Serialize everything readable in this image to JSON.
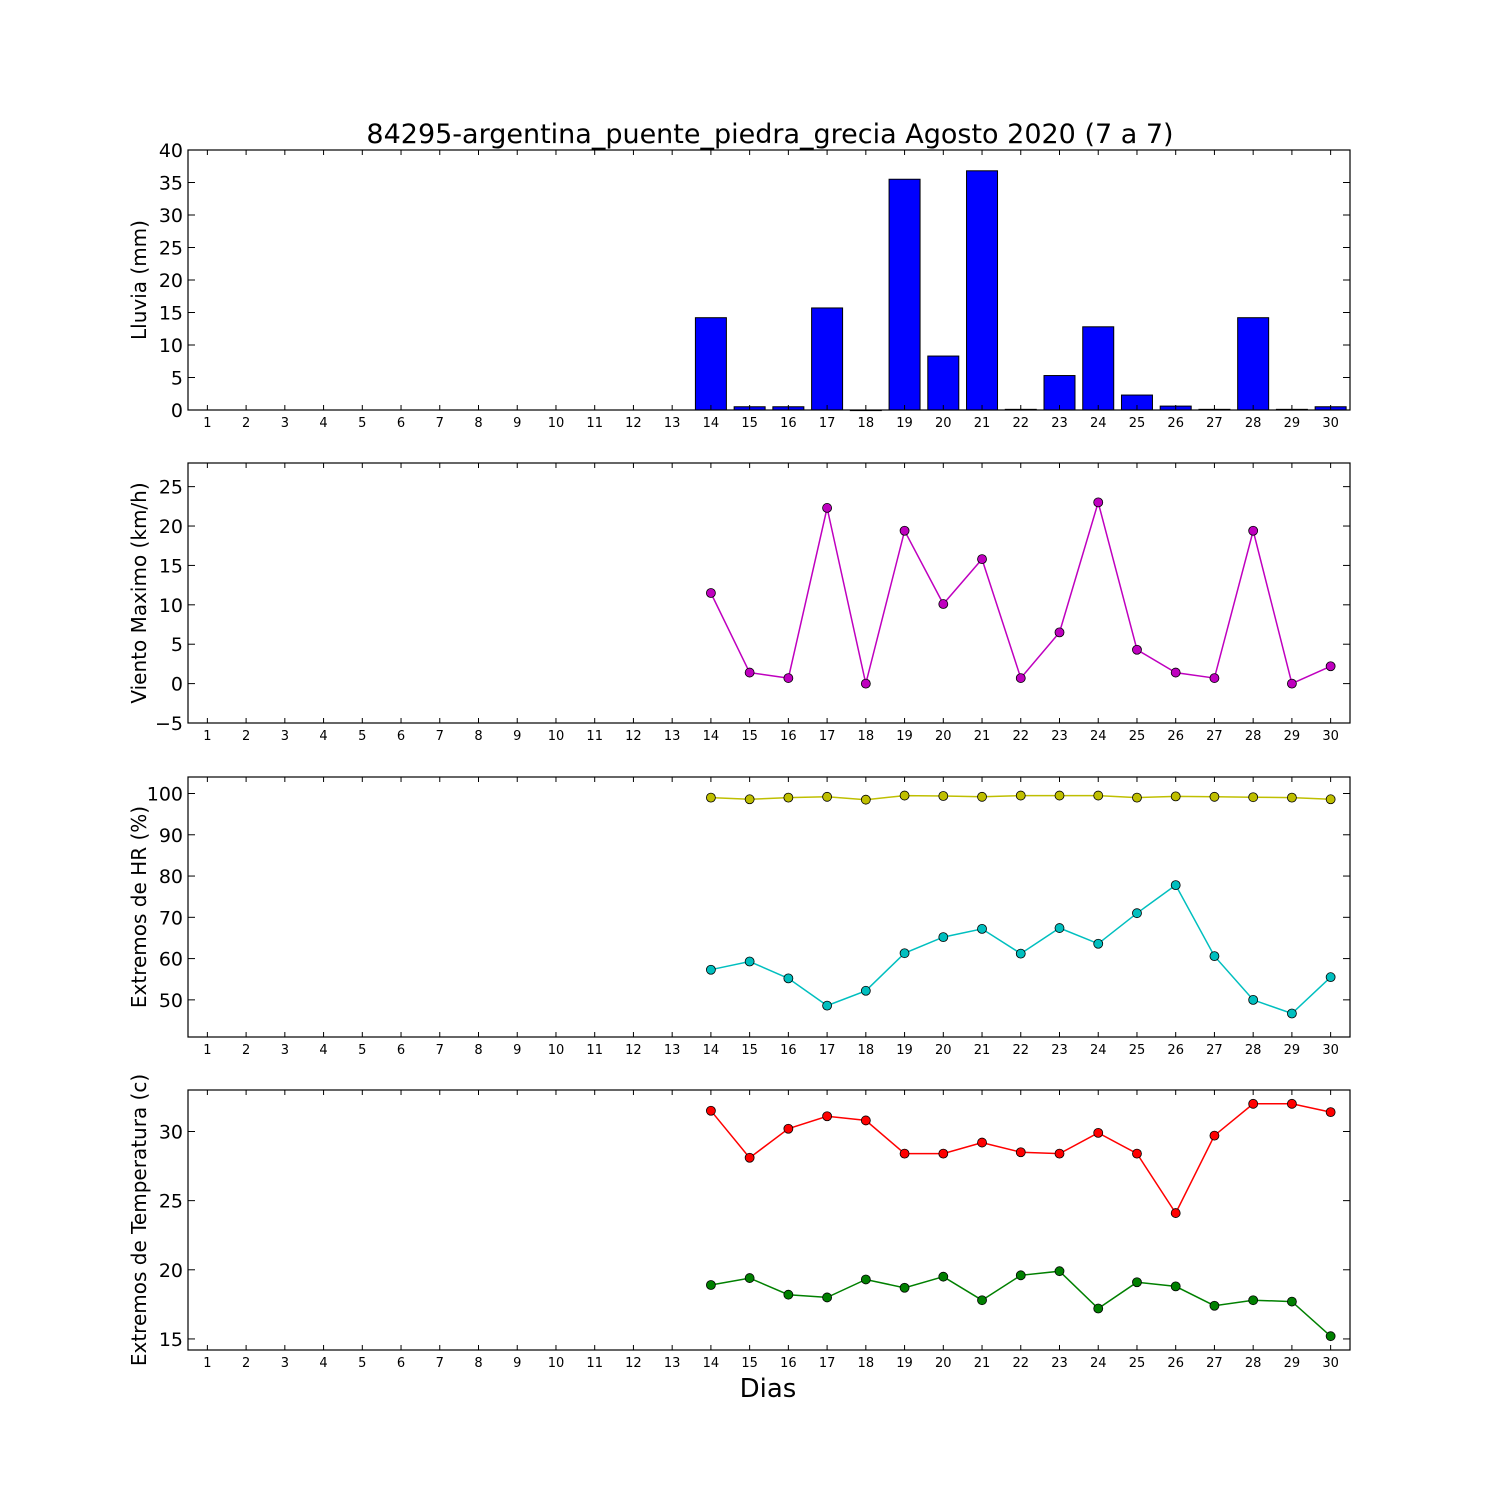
{
  "chart_data": {
    "title": "84295-argentina_puente_piedra_grecia Agosto 2020  (7 a 7)",
    "xlabel": "Dias",
    "x": [
      1,
      2,
      3,
      4,
      5,
      6,
      7,
      8,
      9,
      10,
      11,
      12,
      13,
      14,
      15,
      16,
      17,
      18,
      19,
      20,
      21,
      22,
      23,
      24,
      25,
      26,
      27,
      28,
      29,
      30
    ],
    "xlim": [
      0.5,
      30.5
    ],
    "panels": [
      {
        "type": "bar",
        "ylabel": "Lluvia (mm)",
        "ylim": [
          0,
          40
        ],
        "yticks": [
          0,
          5,
          10,
          15,
          20,
          25,
          30,
          35,
          40
        ],
        "series": [
          {
            "color": "#0000ff",
            "values": [
              null,
              null,
              null,
              null,
              null,
              null,
              null,
              null,
              null,
              null,
              null,
              null,
              null,
              14.2,
              0.5,
              0.5,
              15.7,
              0,
              35.5,
              8.3,
              36.8,
              0.1,
              5.3,
              12.8,
              2.3,
              0.6,
              0.1,
              14.2,
              0.1,
              0.5
            ]
          }
        ]
      },
      {
        "type": "line",
        "ylabel": "Viento Maximo (km/h)",
        "ylim": [
          -5,
          28
        ],
        "yticks": [
          -5,
          0,
          5,
          10,
          15,
          20,
          25
        ],
        "series": [
          {
            "color": "#bf00bf",
            "values": [
              null,
              null,
              null,
              null,
              null,
              null,
              null,
              null,
              null,
              null,
              null,
              null,
              null,
              11.5,
              1.4,
              0.7,
              22.3,
              0.0,
              19.4,
              10.1,
              15.8,
              0.7,
              6.5,
              23.0,
              4.3,
              1.4,
              0.7,
              19.4,
              0.0,
              2.2
            ]
          }
        ]
      },
      {
        "type": "line",
        "ylabel": "Extremos de HR (%)",
        "ylim": [
          41,
          104
        ],
        "yticks": [
          50,
          60,
          70,
          80,
          90,
          100
        ],
        "series": [
          {
            "color": "#bfbf00",
            "values": [
              null,
              null,
              null,
              null,
              null,
              null,
              null,
              null,
              null,
              null,
              null,
              null,
              null,
              99.0,
              98.6,
              99.0,
              99.2,
              98.5,
              99.5,
              99.4,
              99.2,
              99.5,
              99.5,
              99.5,
              99.0,
              99.3,
              99.2,
              99.1,
              99.0,
              98.6
            ]
          },
          {
            "color": "#00bfbf",
            "values": [
              null,
              null,
              null,
              null,
              null,
              null,
              null,
              null,
              null,
              null,
              null,
              null,
              null,
              57.3,
              59.3,
              55.2,
              48.6,
              52.2,
              61.3,
              65.2,
              67.2,
              61.2,
              67.4,
              63.6,
              71.0,
              77.8,
              60.6,
              50.0,
              46.7,
              55.5
            ]
          }
        ]
      },
      {
        "type": "line",
        "ylabel": "Extremos de Temperatura (c)",
        "ylim": [
          14.2,
          33.0
        ],
        "yticks": [
          15,
          20,
          25,
          30
        ],
        "series": [
          {
            "color": "#ff0000",
            "values": [
              null,
              null,
              null,
              null,
              null,
              null,
              null,
              null,
              null,
              null,
              null,
              null,
              null,
              31.5,
              28.1,
              30.2,
              31.1,
              30.8,
              28.4,
              28.4,
              29.2,
              28.5,
              28.4,
              29.9,
              28.4,
              24.1,
              29.7,
              32.0,
              32.0,
              31.4
            ]
          },
          {
            "color": "#008000",
            "values": [
              null,
              null,
              null,
              null,
              null,
              null,
              null,
              null,
              null,
              null,
              null,
              null,
              null,
              18.9,
              19.4,
              18.2,
              18.0,
              19.3,
              18.7,
              19.5,
              17.8,
              19.6,
              19.9,
              17.2,
              19.1,
              18.8,
              17.4,
              17.8,
              17.7,
              15.2
            ]
          }
        ]
      }
    ]
  }
}
